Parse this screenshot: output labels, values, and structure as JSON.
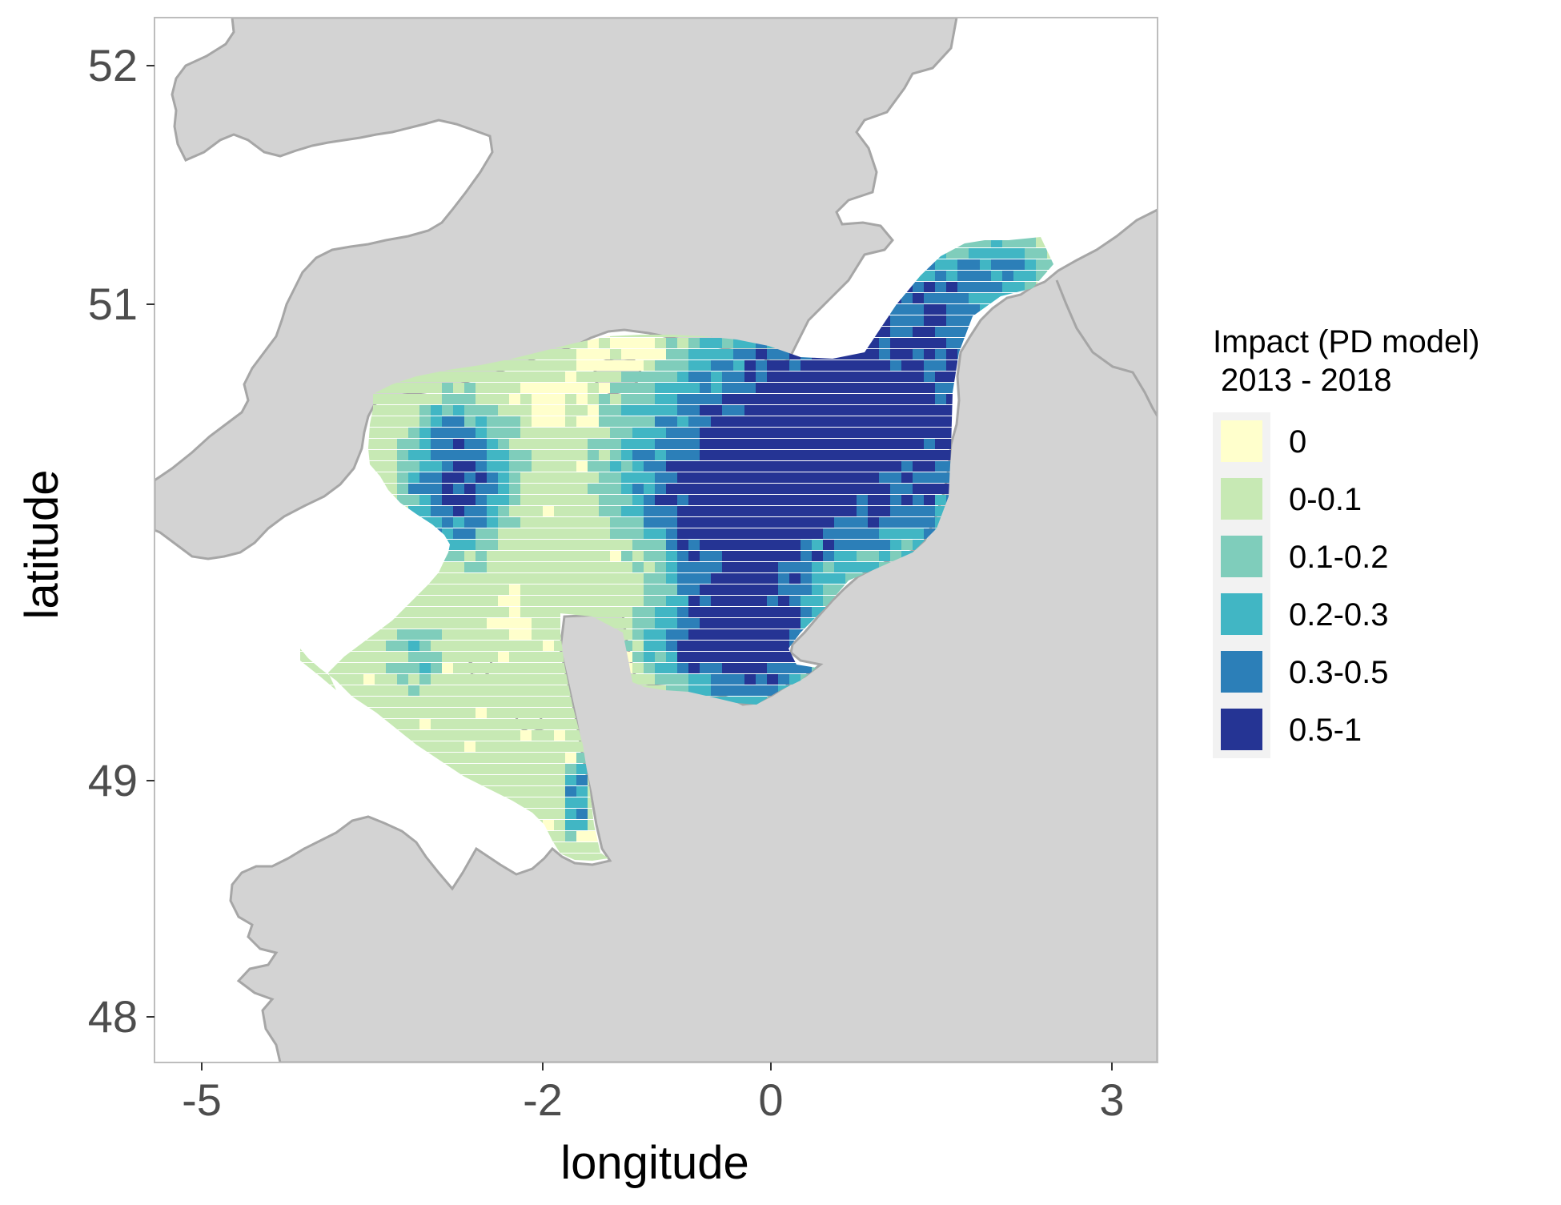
{
  "map": {
    "x_axis": {
      "label": "longitude",
      "ticks": [
        "-5",
        "-2",
        "0",
        "3"
      ],
      "tick_values": [
        -5,
        -2,
        0,
        3
      ],
      "range": [
        -5.4,
        3.4
      ]
    },
    "y_axis": {
      "label": "latitude",
      "ticks": [
        "52",
        "51",
        "49",
        "48"
      ],
      "tick_values": [
        52,
        51,
        49,
        48
      ],
      "range": [
        47.9,
        52.25
      ]
    },
    "colors": {
      "land": "#d3d3d3",
      "land_border": "#a6a6a6",
      "panel_border": "#bdbdbd",
      "axis_text": "#4d4d4d"
    },
    "legend": {
      "title_line1": "Impact (PD model)",
      "title_line2": "2013 - 2018",
      "items": [
        {
          "label": "0",
          "color": "#ffffcc"
        },
        {
          "label": "0-0.1",
          "color": "#c7e9b4"
        },
        {
          "label": "0.1-0.2",
          "color": "#7fcdbb"
        },
        {
          "label": "0.2-0.3",
          "color": "#41b6c4"
        },
        {
          "label": "0.3-0.5",
          "color": "#2c7fb8"
        },
        {
          "label": "0.5-1",
          "color": "#253494"
        }
      ]
    }
  }
}
